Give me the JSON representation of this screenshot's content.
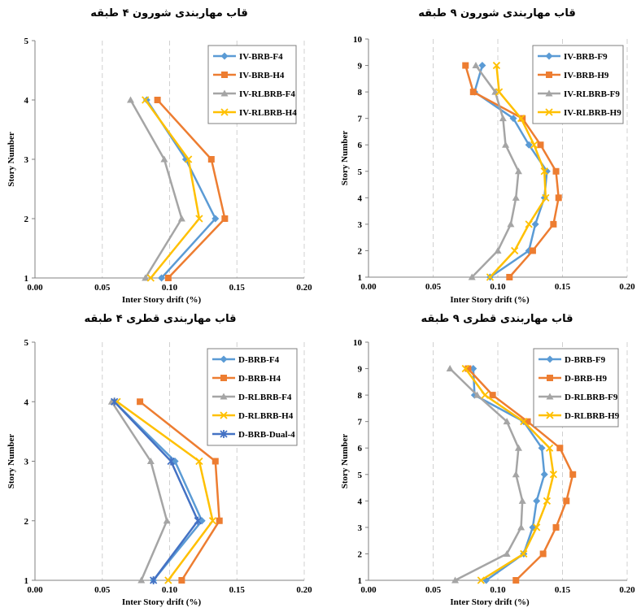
{
  "chart_data": [
    {
      "type": "line",
      "title": "قاب مهاربندی شورون ۴ طبقه",
      "xlabel": "Inter Story drift (%)",
      "ylabel": "Story Number",
      "xlim": [
        0,
        0.2
      ],
      "ylim": [
        1,
        5
      ],
      "xticks": [
        "0.00",
        "0.05",
        "0.10",
        "0.15",
        "0.20"
      ],
      "yticks": [
        "1",
        "2",
        "3",
        "4",
        "5"
      ],
      "grid": "vertical dashed",
      "legend": "top-right",
      "series": [
        {
          "name": "IV-BRB-F4",
          "color": "#5b9bd5",
          "marker": "diamond",
          "points": [
            [
              0.094,
              1
            ],
            [
              0.134,
              2
            ],
            [
              0.112,
              3
            ],
            [
              0.083,
              4
            ]
          ]
        },
        {
          "name": "IV-BRB-H4",
          "color": "#ed7d31",
          "marker": "square",
          "points": [
            [
              0.099,
              1
            ],
            [
              0.141,
              2
            ],
            [
              0.131,
              3
            ],
            [
              0.091,
              4
            ]
          ]
        },
        {
          "name": "IV-RLBRB-F4",
          "color": "#a5a5a5",
          "marker": "triangle",
          "points": [
            [
              0.082,
              1
            ],
            [
              0.109,
              2
            ],
            [
              0.096,
              3
            ],
            [
              0.071,
              4
            ]
          ]
        },
        {
          "name": "IV-RLBRB-H4",
          "color": "#ffc000",
          "marker": "x",
          "points": [
            [
              0.086,
              1
            ],
            [
              0.122,
              2
            ],
            [
              0.114,
              3
            ],
            [
              0.082,
              4
            ]
          ]
        }
      ]
    },
    {
      "type": "line",
      "title": "قاب مهاربندی شورون ۹ طبقه",
      "xlabel": "Inter Story drift (%)",
      "ylabel": "Story Number",
      "xlim": [
        0,
        0.2
      ],
      "ylim": [
        1,
        10
      ],
      "xticks": [
        "0.00",
        "0.05",
        "0.10",
        "0.15",
        "0.20"
      ],
      "yticks": [
        "1",
        "2",
        "3",
        "4",
        "5",
        "6",
        "7",
        "8",
        "9",
        "10"
      ],
      "grid": "vertical dashed",
      "legend": "top-right",
      "series": [
        {
          "name": "IV-BRB-F9",
          "color": "#5b9bd5",
          "marker": "diamond",
          "points": [
            [
              0.094,
              1
            ],
            [
              0.124,
              2
            ],
            [
              0.129,
              3
            ],
            [
              0.136,
              4
            ],
            [
              0.138,
              5
            ],
            [
              0.124,
              6
            ],
            [
              0.112,
              7
            ],
            [
              0.082,
              8
            ],
            [
              0.088,
              9
            ]
          ]
        },
        {
          "name": "IV-BRB-H9",
          "color": "#ed7d31",
          "marker": "square",
          "points": [
            [
              0.109,
              1
            ],
            [
              0.127,
              2
            ],
            [
              0.143,
              3
            ],
            [
              0.147,
              4
            ],
            [
              0.145,
              5
            ],
            [
              0.133,
              6
            ],
            [
              0.119,
              7
            ],
            [
              0.081,
              8
            ],
            [
              0.075,
              9
            ]
          ]
        },
        {
          "name": "IV-RLBRB-F9",
          "color": "#a5a5a5",
          "marker": "triangle",
          "points": [
            [
              0.08,
              1
            ],
            [
              0.1,
              2
            ],
            [
              0.11,
              3
            ],
            [
              0.114,
              4
            ],
            [
              0.116,
              5
            ],
            [
              0.106,
              6
            ],
            [
              0.104,
              7
            ],
            [
              0.098,
              8
            ],
            [
              0.083,
              9
            ]
          ]
        },
        {
          "name": "IV-RLBRB-H9",
          "color": "#ffc000",
          "marker": "x",
          "points": [
            [
              0.094,
              1
            ],
            [
              0.113,
              2
            ],
            [
              0.124,
              3
            ],
            [
              0.137,
              4
            ],
            [
              0.136,
              5
            ],
            [
              0.128,
              6
            ],
            [
              0.118,
              7
            ],
            [
              0.101,
              8
            ],
            [
              0.099,
              9
            ]
          ]
        }
      ]
    },
    {
      "type": "line",
      "title": "قاب مهاربندی قطری ۴ طبقه",
      "xlabel": "Inter Story drift (%)",
      "ylabel": "Story Number",
      "xlim": [
        0,
        0.2
      ],
      "ylim": [
        1,
        5
      ],
      "xticks": [
        "0.00",
        "0.05",
        "0.10",
        "0.15",
        "0.20"
      ],
      "yticks": [
        "1",
        "2",
        "3",
        "4",
        "5"
      ],
      "grid": "vertical dashed",
      "legend": "top-right",
      "series": [
        {
          "name": "D-BRB-F4",
          "color": "#5b9bd5",
          "marker": "diamond",
          "points": [
            [
              0.088,
              1
            ],
            [
              0.124,
              2
            ],
            [
              0.104,
              3
            ],
            [
              0.059,
              4
            ]
          ]
        },
        {
          "name": "D-BRB-H4",
          "color": "#ed7d31",
          "marker": "square",
          "points": [
            [
              0.109,
              1
            ],
            [
              0.137,
              2
            ],
            [
              0.134,
              3
            ],
            [
              0.078,
              4
            ]
          ]
        },
        {
          "name": "D-RLBRB-F4",
          "color": "#a5a5a5",
          "marker": "triangle",
          "points": [
            [
              0.079,
              1
            ],
            [
              0.098,
              2
            ],
            [
              0.086,
              3
            ],
            [
              0.057,
              4
            ]
          ]
        },
        {
          "name": "D-RLBRB-H4",
          "color": "#ffc000",
          "marker": "x",
          "points": [
            [
              0.099,
              1
            ],
            [
              0.132,
              2
            ],
            [
              0.122,
              3
            ],
            [
              0.061,
              4
            ]
          ]
        },
        {
          "name": "D-BRB-Dual-4",
          "color": "#4472c4",
          "marker": "star",
          "points": [
            [
              0.088,
              1
            ],
            [
              0.121,
              2
            ],
            [
              0.101,
              3
            ],
            [
              0.059,
              4
            ]
          ]
        }
      ]
    },
    {
      "type": "line",
      "title": "قاب مهاربندی قطری ۹ طبقه",
      "xlabel": "Inter Story drift (%)",
      "ylabel": "Story Number",
      "xlim": [
        0,
        0.2
      ],
      "ylim": [
        1,
        10
      ],
      "xticks": [
        "0.00",
        "0.05",
        "0.10",
        "0.15",
        "0.20"
      ],
      "yticks": [
        "1",
        "2",
        "3",
        "4",
        "5",
        "6",
        "7",
        "8",
        "9",
        "10"
      ],
      "grid": "vertical dashed",
      "legend": "top-right",
      "series": [
        {
          "name": "D-BRB-F9",
          "color": "#5b9bd5",
          "marker": "diamond",
          "points": [
            [
              0.091,
              1
            ],
            [
              0.12,
              2
            ],
            [
              0.127,
              3
            ],
            [
              0.13,
              4
            ],
            [
              0.136,
              5
            ],
            [
              0.134,
              6
            ],
            [
              0.12,
              7
            ],
            [
              0.082,
              8
            ],
            [
              0.081,
              9
            ]
          ]
        },
        {
          "name": "D-BRB-H9",
          "color": "#ed7d31",
          "marker": "square",
          "points": [
            [
              0.114,
              1
            ],
            [
              0.135,
              2
            ],
            [
              0.145,
              3
            ],
            [
              0.153,
              4
            ],
            [
              0.158,
              5
            ],
            [
              0.148,
              6
            ],
            [
              0.123,
              7
            ],
            [
              0.096,
              8
            ],
            [
              0.077,
              9
            ]
          ]
        },
        {
          "name": "D-RLBRB-F9",
          "color": "#a5a5a5",
          "marker": "triangle",
          "points": [
            [
              0.067,
              1
            ],
            [
              0.107,
              2
            ],
            [
              0.118,
              3
            ],
            [
              0.119,
              4
            ],
            [
              0.114,
              5
            ],
            [
              0.116,
              6
            ],
            [
              0.107,
              7
            ],
            [
              0.084,
              8
            ],
            [
              0.063,
              9
            ]
          ]
        },
        {
          "name": "D-RLBRB-H9",
          "color": "#ffc000",
          "marker": "x",
          "points": [
            [
              0.087,
              1
            ],
            [
              0.12,
              2
            ],
            [
              0.13,
              3
            ],
            [
              0.138,
              4
            ],
            [
              0.143,
              5
            ],
            [
              0.14,
              6
            ],
            [
              0.12,
              7
            ],
            [
              0.09,
              8
            ],
            [
              0.075,
              9
            ]
          ]
        }
      ]
    }
  ]
}
